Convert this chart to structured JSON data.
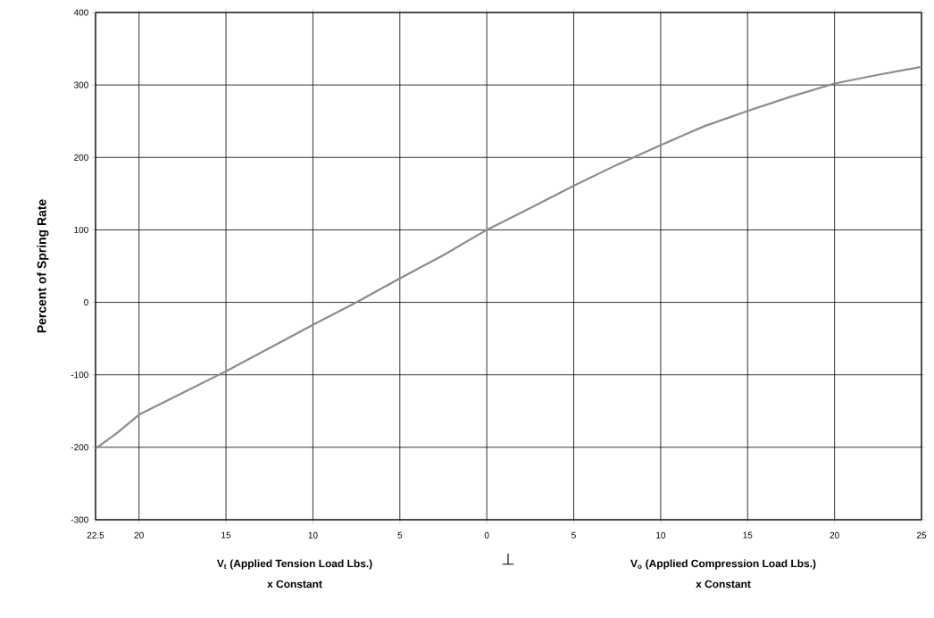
{
  "chart_data": {
    "type": "line",
    "ylabel": "Percent of Spring Rate",
    "x": [
      -22.5,
      -21.25,
      -20,
      -17.5,
      -15,
      -12.5,
      -10,
      -7.5,
      -5,
      -2.5,
      0,
      2.5,
      5,
      7.5,
      10,
      12.5,
      15,
      17.5,
      20,
      22.5,
      25
    ],
    "series": [
      {
        "color": "#8c8c8c",
        "values": [
          -202,
          -180,
          -155,
          -125,
          -95,
          -63,
          -31,
          0,
          33,
          65,
          100,
          130,
          161,
          190,
          217,
          243,
          264,
          284,
          302,
          314,
          325
        ]
      }
    ],
    "xlim": [
      -22.5,
      25
    ],
    "xticks": [
      {
        "value": -22.5,
        "label": "22.5"
      },
      {
        "value": -20,
        "label": "20"
      },
      {
        "value": -15,
        "label": "15"
      },
      {
        "value": -10,
        "label": "10"
      },
      {
        "value": -5,
        "label": "5"
      },
      0,
      5,
      10,
      15,
      20,
      25
    ],
    "ylim": [
      -300,
      400
    ],
    "yticks": [
      -300,
      -200,
      -100,
      0,
      100,
      200,
      300,
      400
    ],
    "grid": true,
    "marker": "none",
    "line_style": "solid",
    "annotations": [
      "V$_{t}$ (Applied Tension Load Lbs.)",
      "x Constant",
      "⊥",
      "V$_{o}$ (Applied Compression Load Lbs.)",
      "x Constant"
    ]
  }
}
